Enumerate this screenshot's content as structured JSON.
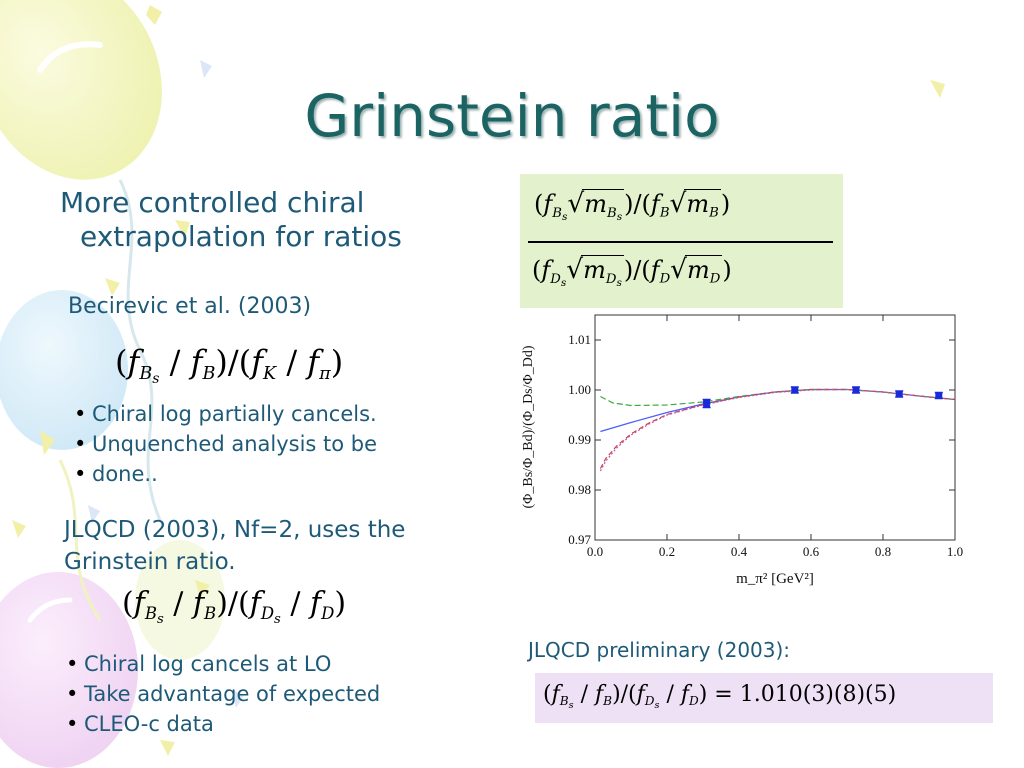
{
  "title": "Grinstein ratio",
  "intro": {
    "line1": "More controlled chiral",
    "line2": "extrapolation for ratios"
  },
  "becirevic": {
    "heading": "Becirevic et al. (2003)",
    "bullets": [
      "Chiral log partially cancels.",
      "Unquenched analysis to be",
      "done.."
    ]
  },
  "jlqcd": {
    "line1": "JLQCD (2003), Nf=2, uses the",
    "line2": "Grinstein ratio.",
    "bullets": [
      "Chiral log cancels at LO",
      "Take advantage of expected",
      "CLEO-c data"
    ]
  },
  "preliminary": {
    "label": "JLQCD preliminary (2003):",
    "result": "1.010(3)(8)(5)"
  },
  "colors": {
    "title": "#1c6464",
    "text": "#1e5a78",
    "green_box": "#e3f2cc",
    "purple_box": "#eee0f5"
  },
  "chart_data": {
    "type": "scatter",
    "title": "",
    "xlabel": "m_π² [GeV²]",
    "ylabel": "(Φ_Bs/Φ_Bd)/(Φ_Ds/Φ_Dd)",
    "xlim": [
      0.0,
      1.0
    ],
    "ylim": [
      0.97,
      1.015
    ],
    "x_ticks": [
      "0.0",
      "0.2",
      "0.4",
      "0.6",
      "0.8",
      "1.0"
    ],
    "y_ticks": [
      "0.97",
      "0.98",
      "0.99",
      "1.00",
      "1.01"
    ],
    "points": [
      {
        "x": 0.31,
        "y": 0.9973,
        "err": 0.0008
      },
      {
        "x": 0.555,
        "y": 1.0,
        "err": 0.0006
      },
      {
        "x": 0.725,
        "y": 1.0,
        "err": 0.0006
      },
      {
        "x": 0.845,
        "y": 0.9992,
        "err": 0.0006
      },
      {
        "x": 0.955,
        "y": 0.9989,
        "err": 0.0006
      }
    ],
    "curves": [
      {
        "style": "solid",
        "color": "#4a5cff",
        "x": [
          0.015,
          0.1,
          0.2,
          0.3,
          0.4,
          0.5,
          0.6,
          0.7,
          0.8,
          0.9,
          1.0
        ],
        "y": [
          0.9917,
          0.9935,
          0.9955,
          0.9972,
          0.9986,
          0.9996,
          1.0001,
          1.0001,
          0.9996,
          0.9988,
          0.9981
        ]
      },
      {
        "style": "dash-green",
        "color": "#3aa83a",
        "x": [
          0.015,
          0.05,
          0.1,
          0.2,
          0.3,
          0.4,
          0.5,
          0.6,
          0.7,
          0.8,
          0.9,
          1.0
        ],
        "y": [
          0.9987,
          0.9974,
          0.9969,
          0.997,
          0.9976,
          0.9987,
          0.9996,
          1.0001,
          1.0001,
          0.9996,
          0.9988,
          0.9981
        ]
      },
      {
        "style": "dash-red",
        "color": "#d83a3a",
        "x": [
          0.015,
          0.03,
          0.06,
          0.1,
          0.15,
          0.2,
          0.3,
          0.4,
          0.5,
          0.6,
          0.7,
          0.8,
          0.9,
          1.0
        ],
        "y": [
          0.9843,
          0.9863,
          0.9888,
          0.9912,
          0.9934,
          0.9951,
          0.9971,
          0.9986,
          0.9996,
          1.0001,
          1.0001,
          0.9996,
          0.9988,
          0.9981
        ]
      },
      {
        "style": "dot-purple",
        "color": "#b45ab4",
        "x": [
          0.015,
          0.03,
          0.06,
          0.1,
          0.15,
          0.2,
          0.3,
          0.4,
          0.5,
          0.6,
          0.7,
          0.8,
          0.9,
          1.0
        ],
        "y": [
          0.9838,
          0.9858,
          0.9884,
          0.991,
          0.9932,
          0.995,
          0.997,
          0.9985,
          0.9995,
          1.0,
          1.0001,
          0.9996,
          0.9988,
          0.9981
        ]
      }
    ]
  }
}
